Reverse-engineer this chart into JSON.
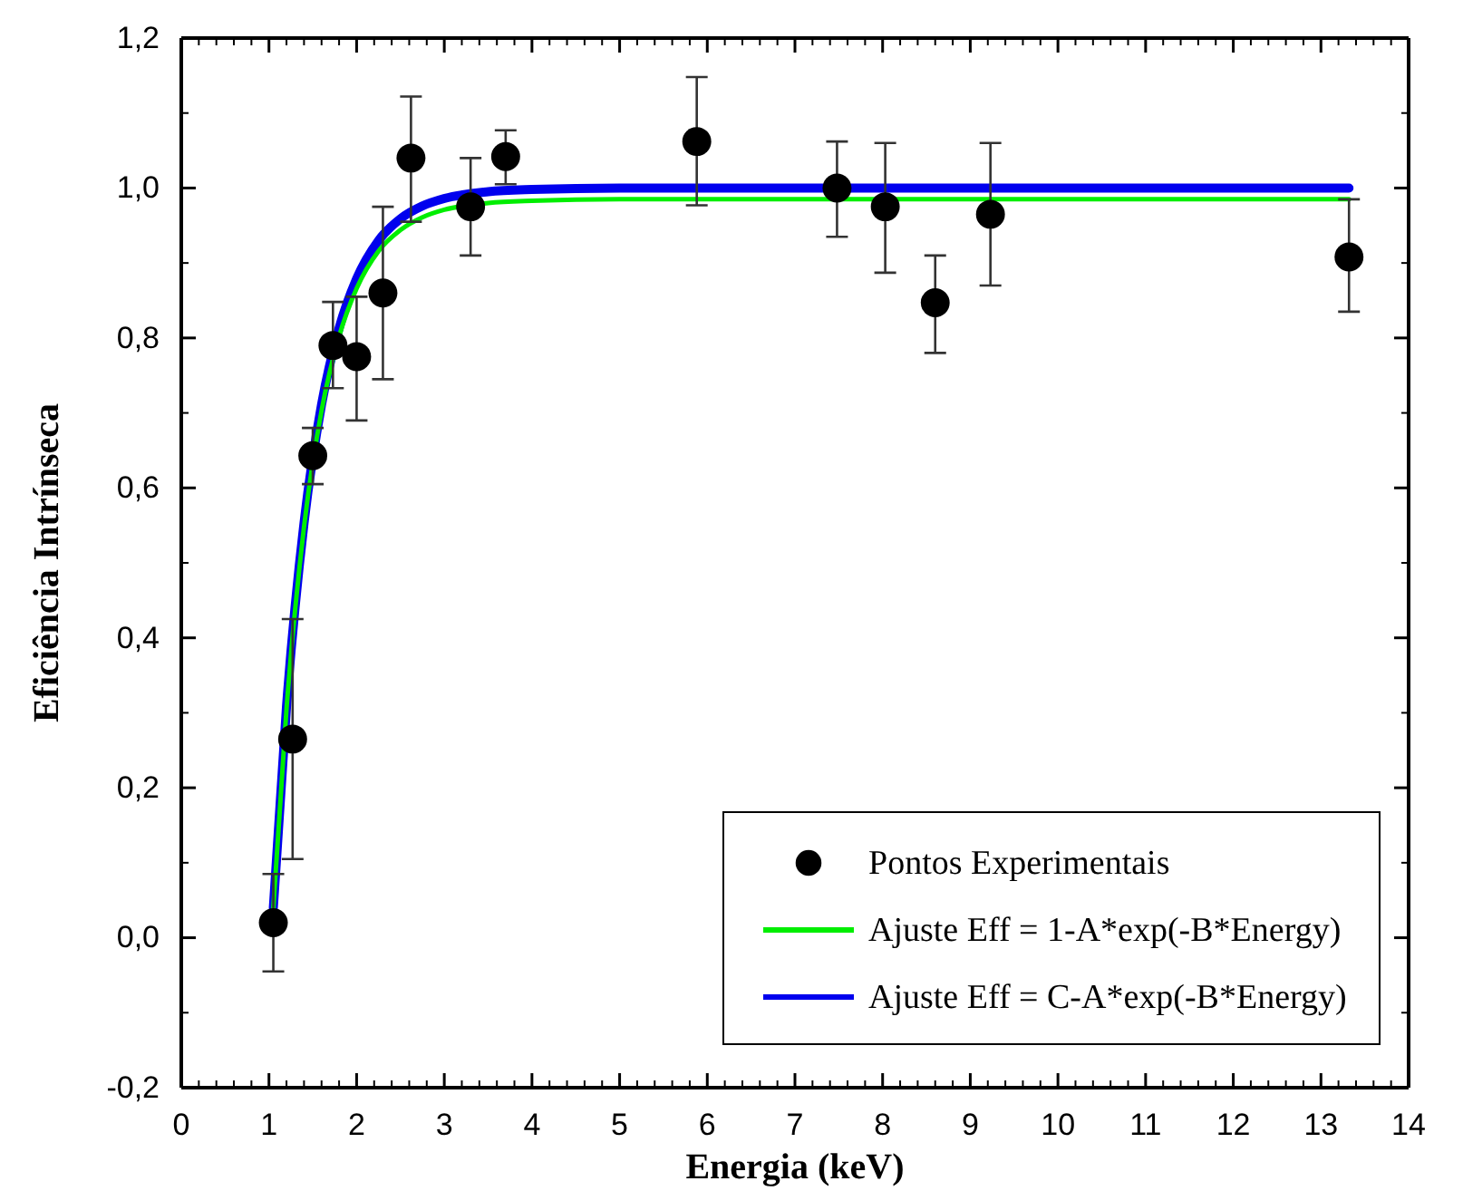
{
  "chart_data": {
    "type": "scatter",
    "xlabel": "Energia (keV)",
    "ylabel": "Eficiência Intrínseca",
    "xlim": [
      0,
      14
    ],
    "xticks": [
      0,
      1,
      2,
      3,
      4,
      5,
      6,
      7,
      8,
      9,
      10,
      11,
      12,
      13,
      14
    ],
    "ylim": [
      -0.2,
      1.2
    ],
    "yticks": [
      {
        "value": -0.2,
        "label": "-0,2"
      },
      {
        "value": 0,
        "label": "0,0"
      },
      {
        "value": 0.2,
        "label": "0,2"
      },
      {
        "value": 0.4,
        "label": "0,4"
      },
      {
        "value": 0.6,
        "label": "0,6"
      },
      {
        "value": 0.8,
        "label": "0,8"
      },
      {
        "value": 1.0,
        "label": "1,0"
      },
      {
        "value": 1.2,
        "label": "1,2"
      }
    ],
    "grid": false,
    "legend": "bottom right",
    "series": [
      {
        "name": "Pontos Experimentais",
        "marker": "circle",
        "color": "#000000",
        "x": [
          1.05,
          1.27,
          1.5,
          1.73,
          2.0,
          2.3,
          2.62,
          3.3,
          3.7,
          5.88,
          7.48,
          8.03,
          8.6,
          9.23,
          13.32
        ],
        "values": [
          0.02,
          0.265,
          0.643,
          0.79,
          0.775,
          0.86,
          1.04,
          0.975,
          1.042,
          1.062,
          1.0,
          0.975,
          0.847,
          0.965,
          0.908
        ],
        "errors": [
          [
            -0.045,
            0.085
          ],
          [
            0.105,
            0.425
          ],
          [
            0.605,
            0.68
          ],
          [
            0.733,
            0.848
          ],
          [
            0.69,
            0.855
          ],
          [
            0.745,
            0.975
          ],
          [
            0.955,
            1.122
          ],
          [
            0.91,
            1.04
          ],
          [
            1.005,
            1.077
          ],
          [
            0.977,
            1.148
          ],
          [
            0.935,
            1.062
          ],
          [
            0.887,
            1.06
          ],
          [
            0.78,
            0.91
          ],
          [
            0.87,
            1.06
          ],
          [
            0.835,
            0.985
          ]
        ]
      },
      {
        "name": "Ajuste Eff = 1-A*exp(-B*Energy)",
        "type": "line",
        "marker": "none",
        "line_style": "solid",
        "color": "#00ee00",
        "x": [
          1.05,
          1.2,
          1.4,
          1.6,
          1.8,
          2.0,
          2.25,
          2.5,
          2.75,
          3.0,
          3.5,
          4,
          5,
          6,
          8,
          10,
          13.32
        ],
        "values": [
          0.04,
          0.305,
          0.548,
          0.703,
          0.802,
          0.866,
          0.916,
          0.944,
          0.961,
          0.971,
          0.98,
          0.983,
          0.985,
          0.985,
          0.985,
          0.985,
          0.985
        ]
      },
      {
        "name": "Ajuste Eff = C-A*exp(-B*Energy)",
        "type": "line",
        "marker": "none",
        "line_style": "solid",
        "color": "#0000ee",
        "x": [
          1.05,
          1.2,
          1.4,
          1.6,
          1.8,
          2.0,
          2.25,
          2.5,
          2.75,
          3.0,
          3.5,
          4,
          5,
          6,
          8,
          10,
          13.32
        ],
        "values": [
          0.04,
          0.308,
          0.553,
          0.711,
          0.813,
          0.879,
          0.93,
          0.959,
          0.976,
          0.986,
          0.995,
          0.998,
          1.0,
          1.0,
          1.0,
          1.0,
          1.0
        ]
      }
    ]
  }
}
